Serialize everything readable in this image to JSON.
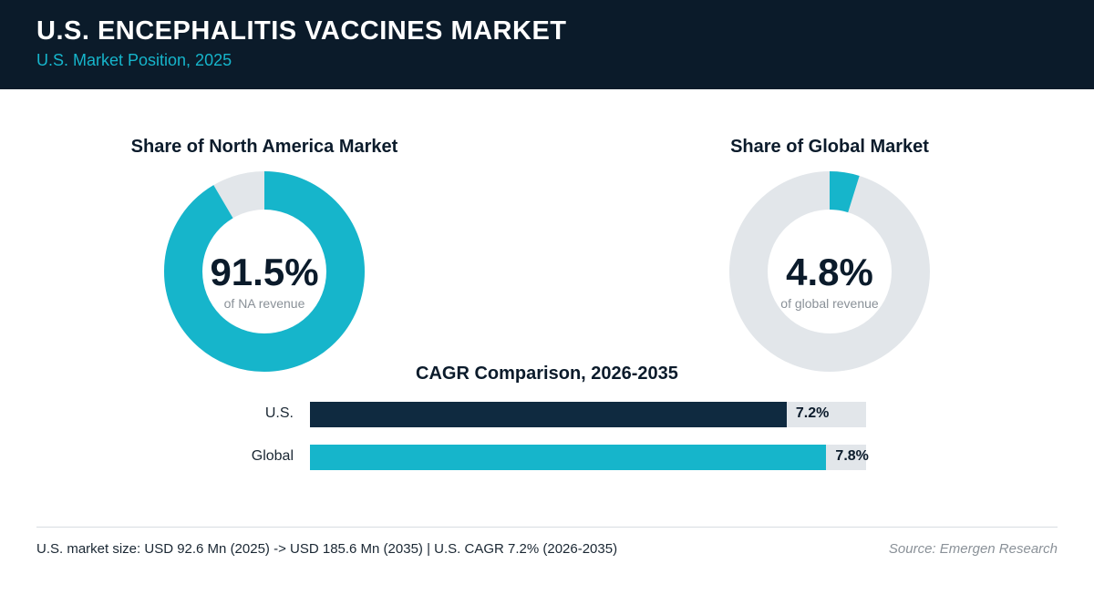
{
  "header": {
    "title": "U.S. ENCEPHALITIS VACCINES MARKET",
    "subtitle": "U.S. Market Position, 2025"
  },
  "colors": {
    "header_bg": "#0b1b2a",
    "accent": "#16b5cb",
    "dark": "#0f2a40",
    "track": "#e2e6ea"
  },
  "chart_data": [
    {
      "type": "pie",
      "title": "Share of North America Market",
      "center_value": "91.5%",
      "center_caption": "of NA revenue",
      "share": 91.5
    },
    {
      "type": "pie",
      "title": "Share of Global Market",
      "center_value": "4.8%",
      "center_caption": "of global revenue",
      "share": 4.8
    },
    {
      "type": "bar",
      "title": "CAGR Comparison, 2026-2035",
      "categories": [
        "U.S.",
        "Global"
      ],
      "values": [
        7.2,
        7.8
      ],
      "value_labels": [
        "7.2%",
        "7.8%"
      ],
      "xlim": [
        0,
        8.4
      ]
    }
  ],
  "footer": {
    "note": "U.S. market size: USD 92.6 Mn (2025) -> USD 185.6 Mn (2035)  |  U.S. CAGR 7.2% (2026-2035)",
    "source": "Source: Emergen Research"
  }
}
